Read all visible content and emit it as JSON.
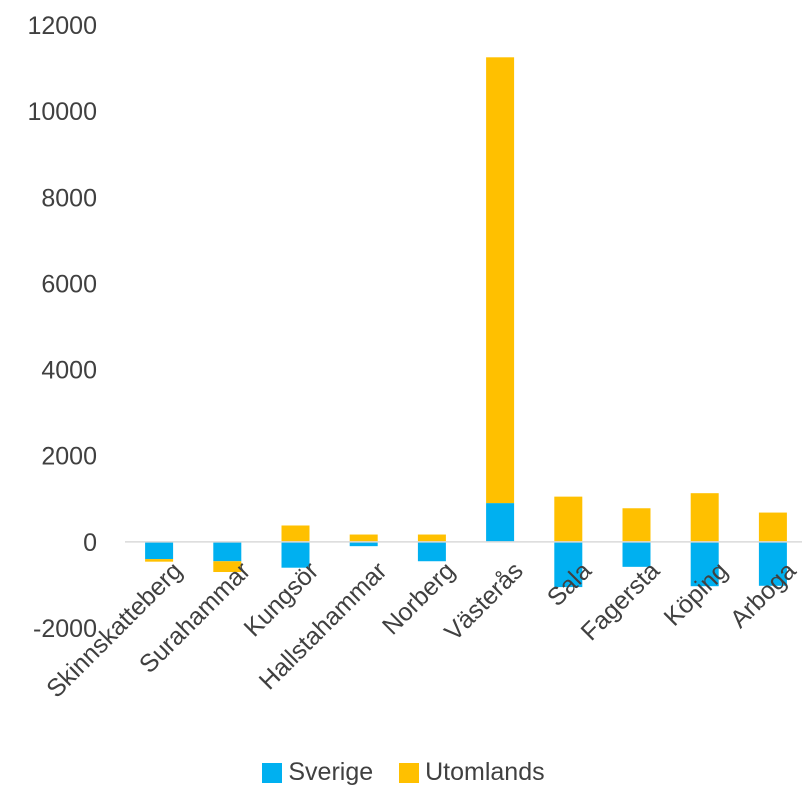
{
  "chart_data": {
    "type": "bar",
    "stacked": true,
    "categories": [
      "Skinnskatteberg",
      "Surahammar",
      "Kungsör",
      "Hallstahammar",
      "Norberg",
      "Västerås",
      "Sala",
      "Fagersta",
      "Köping",
      "Arboga"
    ],
    "series": [
      {
        "name": "Sverige",
        "color": "#00B0F0",
        "values": [
          -400,
          -450,
          -600,
          -100,
          -450,
          900,
          -1050,
          -580,
          -1030,
          -1020
        ]
      },
      {
        "name": "Utomlands",
        "color": "#FFC000",
        "values": [
          -60,
          -250,
          380,
          170,
          170,
          10350,
          1050,
          780,
          1130,
          680
        ]
      }
    ],
    "ylim": [
      -2000,
      12000
    ],
    "yticks": [
      -2000,
      0,
      2000,
      4000,
      6000,
      8000,
      10000,
      12000
    ],
    "grid": false,
    "legend_position": "bottom",
    "title": "",
    "xlabel": "",
    "ylabel": ""
  }
}
